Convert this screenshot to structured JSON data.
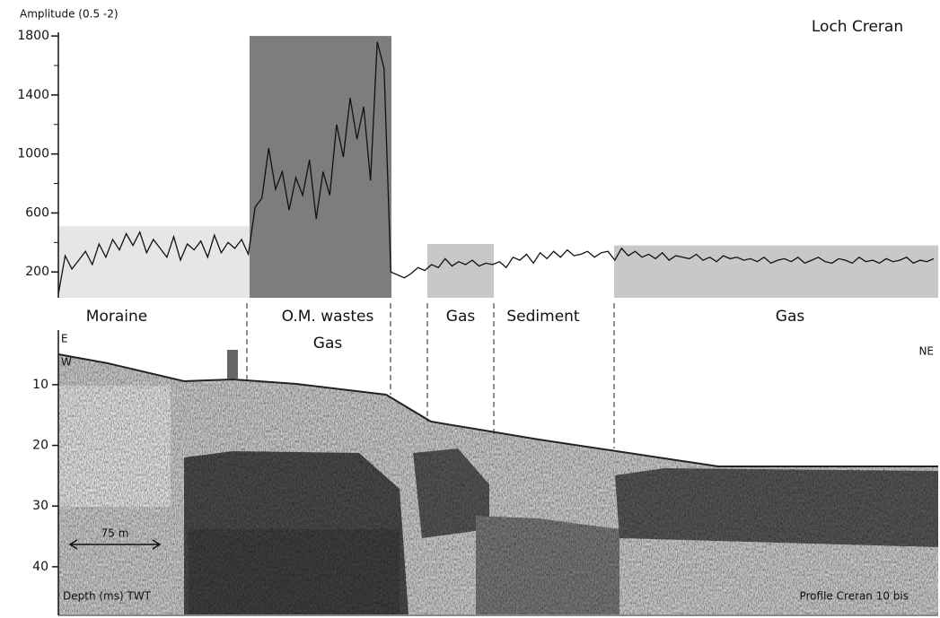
{
  "chart_data": [
    {
      "type": "line",
      "title": "Loch Creran",
      "ylabel": "Amplitude (0.5 -2)",
      "color": "#111111",
      "ylim": [
        25,
        1825
      ],
      "yticks": [
        200,
        600,
        1000,
        1400,
        1800
      ],
      "yminorticks": [
        400,
        800,
        1200,
        1600
      ],
      "values": [
        50,
        310,
        220,
        280,
        340,
        250,
        390,
        300,
        420,
        350,
        460,
        380,
        470,
        330,
        420,
        360,
        300,
        440,
        280,
        390,
        350,
        410,
        300,
        450,
        330,
        400,
        360,
        420,
        320,
        640,
        700,
        1040,
        760,
        880,
        620,
        840,
        720,
        960,
        560,
        880,
        720,
        1200,
        980,
        1380,
        1100,
        1320,
        820,
        1760,
        1580,
        200,
        180,
        160,
        190,
        230,
        210,
        250,
        230,
        290,
        240,
        270,
        250,
        280,
        240,
        260,
        250,
        270,
        230,
        300,
        280,
        320,
        260,
        330,
        290,
        340,
        300,
        350,
        310,
        320,
        340,
        300,
        330,
        340,
        280,
        360,
        310,
        340,
        300,
        320,
        290,
        330,
        280,
        310,
        300,
        290,
        320,
        280,
        300,
        270,
        310,
        290,
        300,
        280,
        290,
        270,
        300,
        260,
        280,
        290,
        270,
        300,
        260,
        280,
        300,
        270,
        260,
        290,
        280,
        260,
        300,
        270,
        280,
        260,
        290,
        270,
        280,
        300,
        260,
        280,
        270,
        290
      ],
      "zones": [
        {
          "label": [
            "Moraine"
          ],
          "level": 510,
          "color": "#e6e6e6"
        },
        {
          "label": [
            "O.M. wastes",
            "Gas"
          ],
          "level": 1800,
          "color": "#7d7d7d"
        },
        {
          "label": [
            "Gas"
          ],
          "level": 390,
          "color": "#c8c8c8"
        },
        {
          "label": [
            "Sediment"
          ],
          "level": null,
          "color": null
        },
        {
          "label": [
            "Gas"
          ],
          "level": 380,
          "color": "#c8c8c8"
        }
      ]
    },
    {
      "type": "image",
      "ylabel": "Depth (ms) TWT",
      "ylim": [
        1,
        48
      ],
      "yticks": [
        10,
        20,
        30,
        40
      ],
      "annotations": [
        "E",
        "W",
        "NE",
        "75 m",
        "Profile Creran 10 bis"
      ]
    }
  ]
}
